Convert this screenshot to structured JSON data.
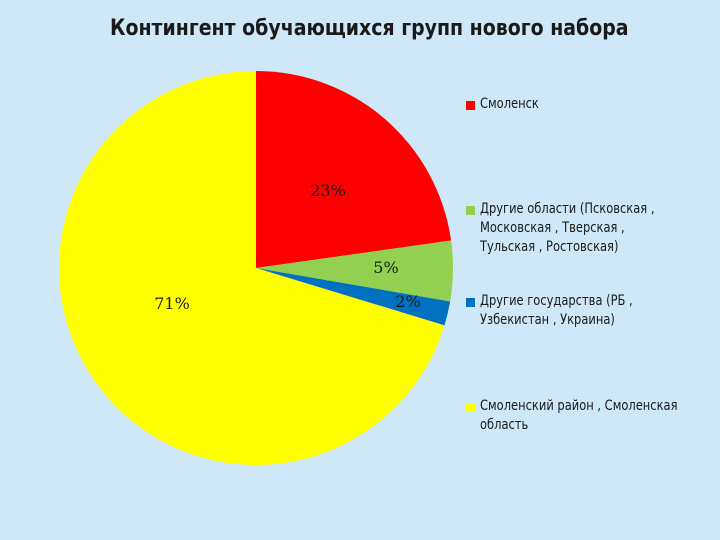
{
  "chart_data": {
    "type": "pie",
    "title": "Контингент обучающихся групп нового набора",
    "categories": [
      "Смоленск",
      "Другие области (Псковская, Московская, Тверская, Тульская, Ростовская)",
      "Другие государства (РБ, Узбекистан, Украина)",
      "Смоленский район, Смоленская область"
    ],
    "values": [
      23,
      5,
      2,
      71
    ],
    "data_labels": [
      "23%",
      "5%",
      "2%",
      "71%"
    ],
    "colors": [
      "#ff0000",
      "#92d050",
      "#0070c0",
      "#ffff00"
    ],
    "legend_placement": "right",
    "legend_entries": [
      "Смоленск",
      "Другие области   (Псковская ,\nМосковская , Тверская ,\nТульская , Ростовская)",
      "Другие государства            (РБ ,\nУзбекистан , Украина)",
      "Смоленский район , Смоленская\nобласть"
    ]
  }
}
